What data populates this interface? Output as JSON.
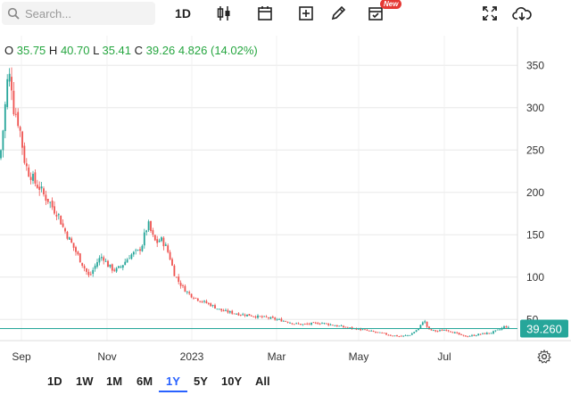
{
  "toolbar": {
    "search_placeholder": "Search...",
    "interval_label": "1D",
    "new_badge": "New"
  },
  "ohlc": {
    "o_label": "O",
    "o_value": "35.75",
    "h_label": "H",
    "h_value": "40.70",
    "l_label": "L",
    "l_value": "35.41",
    "c_label": "C",
    "c_value": "39.26",
    "change": "4.826 (14.02%)"
  },
  "price_tag": "39.260",
  "ranges": [
    "1D",
    "1W",
    "1M",
    "6M",
    "1Y",
    "5Y",
    "10Y",
    "All"
  ],
  "active_range": "1Y",
  "colors": {
    "up": "#26a69a",
    "down": "#ef5350",
    "accent": "#2962ff",
    "grid": "#e8e8e8"
  },
  "chart_data": {
    "type": "candlestick",
    "y_ticks": [
      50,
      100,
      150,
      200,
      250,
      300,
      350
    ],
    "x_ticks": [
      "Sep",
      "Nov",
      "2023",
      "Mar",
      "May",
      "Jul"
    ],
    "last_price": 39.26,
    "ylim": [
      25,
      385
    ],
    "series": [
      {
        "name": "close",
        "points": [
          [
            0,
            240
          ],
          [
            4,
            280
          ],
          [
            8,
            330
          ],
          [
            12,
            340
          ],
          [
            15,
            300
          ],
          [
            19,
            290
          ],
          [
            23,
            270
          ],
          [
            27,
            240
          ],
          [
            31,
            225
          ],
          [
            35,
            220
          ],
          [
            40,
            210
          ],
          [
            45,
            205
          ],
          [
            50,
            195
          ],
          [
            55,
            190
          ],
          [
            60,
            180
          ],
          [
            65,
            175
          ],
          [
            70,
            160
          ],
          [
            75,
            150
          ],
          [
            80,
            140
          ],
          [
            85,
            130
          ],
          [
            90,
            120
          ],
          [
            95,
            110
          ],
          [
            100,
            100
          ],
          [
            105,
            110
          ],
          [
            110,
            120
          ],
          [
            115,
            125
          ],
          [
            120,
            115
          ],
          [
            125,
            110
          ],
          [
            130,
            108
          ],
          [
            135,
            112
          ],
          [
            140,
            118
          ],
          [
            145,
            125
          ],
          [
            150,
            128
          ],
          [
            155,
            130
          ],
          [
            160,
            140
          ],
          [
            163,
            155
          ],
          [
            167,
            162
          ],
          [
            170,
            150
          ],
          [
            175,
            140
          ],
          [
            180,
            145
          ],
          [
            185,
            138
          ],
          [
            190,
            125
          ],
          [
            195,
            105
          ],
          [
            200,
            95
          ],
          [
            205,
            88
          ],
          [
            210,
            82
          ],
          [
            215,
            78
          ],
          [
            220,
            75
          ],
          [
            225,
            72
          ],
          [
            230,
            70
          ],
          [
            235,
            68
          ],
          [
            240,
            65
          ],
          [
            245,
            62
          ],
          [
            250,
            60
          ],
          [
            260,
            58
          ],
          [
            270,
            56
          ],
          [
            280,
            55
          ],
          [
            290,
            53
          ],
          [
            300,
            52
          ],
          [
            310,
            50
          ],
          [
            320,
            48
          ],
          [
            330,
            45
          ],
          [
            340,
            44
          ],
          [
            350,
            45
          ],
          [
            360,
            46
          ],
          [
            370,
            44
          ],
          [
            380,
            42
          ],
          [
            390,
            40
          ],
          [
            400,
            39
          ],
          [
            410,
            37
          ],
          [
            420,
            35
          ],
          [
            430,
            33
          ],
          [
            440,
            31
          ],
          [
            450,
            30
          ],
          [
            460,
            32
          ],
          [
            470,
            40
          ],
          [
            475,
            50
          ],
          [
            480,
            38
          ],
          [
            490,
            36
          ],
          [
            500,
            38
          ],
          [
            510,
            34
          ],
          [
            520,
            30
          ],
          [
            530,
            31
          ],
          [
            540,
            33
          ],
          [
            550,
            34
          ],
          [
            560,
            38
          ],
          [
            566,
            42
          ],
          [
            572,
            39
          ]
        ]
      }
    ]
  }
}
